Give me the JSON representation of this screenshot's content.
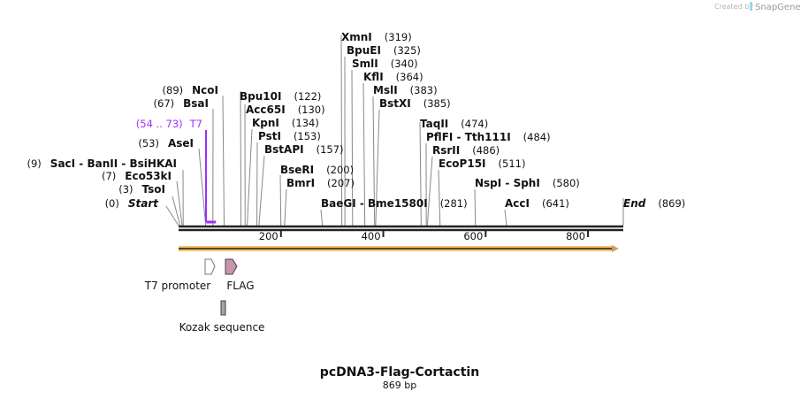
{
  "credit": {
    "prefix": "Created by",
    "brand": "SnapGene"
  },
  "map": {
    "title": "pcDNA3-Flag-Cortactin",
    "length_label": "869 bp",
    "length": 869
  },
  "ticks": [
    "200",
    "400",
    "600",
    "800"
  ],
  "tick_values": [
    200,
    400,
    600,
    800
  ],
  "primer": {
    "name": "T7",
    "range": "(54 .. 73)",
    "start": 54,
    "end": 73,
    "color": "#9b30ff"
  },
  "enzymes": [
    {
      "name": "NcoI",
      "pos_label": "(89)",
      "pos": 89
    },
    {
      "name": "BsaI",
      "pos_label": "(67)",
      "pos": 67
    },
    {
      "name": "AseI",
      "pos_label": "(53)",
      "pos": 53
    },
    {
      "name": "SacI  - BanII  - BsiHKAI",
      "pos_label": "(9)",
      "pos": 9
    },
    {
      "name": "Eco53kI",
      "pos_label": "(7)",
      "pos": 7
    },
    {
      "name": "TsoI",
      "pos_label": "(3)",
      "pos": 3
    },
    {
      "name": "Start",
      "pos_label": "(0)",
      "pos": 0
    },
    {
      "name": "Bpu10I",
      "pos_label": "(122)",
      "pos": 122
    },
    {
      "name": "Acc65I",
      "pos_label": "(130)",
      "pos": 130
    },
    {
      "name": "KpnI",
      "pos_label": "(134)",
      "pos": 134
    },
    {
      "name": "PstI",
      "pos_label": "(153)",
      "pos": 153
    },
    {
      "name": "BstAPI",
      "pos_label": "(157)",
      "pos": 157
    },
    {
      "name": "BseRI",
      "pos_label": "(200)",
      "pos": 200
    },
    {
      "name": "BmrI",
      "pos_label": "(207)",
      "pos": 207
    },
    {
      "name": "BaeGI  - Bme1580I",
      "pos_label": "(281)",
      "pos": 281
    },
    {
      "name": "XmnI",
      "pos_label": "(319)",
      "pos": 319
    },
    {
      "name": "BpuEI",
      "pos_label": "(325)",
      "pos": 325
    },
    {
      "name": "SmlI",
      "pos_label": "(340)",
      "pos": 340
    },
    {
      "name": "KflI",
      "pos_label": "(364)",
      "pos": 364
    },
    {
      "name": "MslI",
      "pos_label": "(383)",
      "pos": 383
    },
    {
      "name": "BstXI",
      "pos_label": "(385)",
      "pos": 385
    },
    {
      "name": "TaqII",
      "pos_label": "(474)",
      "pos": 474
    },
    {
      "name": "PflFI  - Tth111I",
      "pos_label": "(484)",
      "pos": 484
    },
    {
      "name": "RsrII",
      "pos_label": "(486)",
      "pos": 486
    },
    {
      "name": "EcoP15I",
      "pos_label": "(511)",
      "pos": 511
    },
    {
      "name": "NspI  - SphI",
      "pos_label": "(580)",
      "pos": 580
    },
    {
      "name": "AccI",
      "pos_label": "(641)",
      "pos": 641
    },
    {
      "name": "End",
      "pos_label": "(869)",
      "pos": 869
    }
  ],
  "features": [
    {
      "name": "T7 promoter",
      "type": "promoter",
      "color": "#ffffff"
    },
    {
      "name": "FLAG",
      "type": "tag",
      "color": "#c994ae"
    },
    {
      "name": "Kozak sequence",
      "type": "misc",
      "color": "#a0a4a8"
    }
  ],
  "orf_color": "#f5c26b"
}
